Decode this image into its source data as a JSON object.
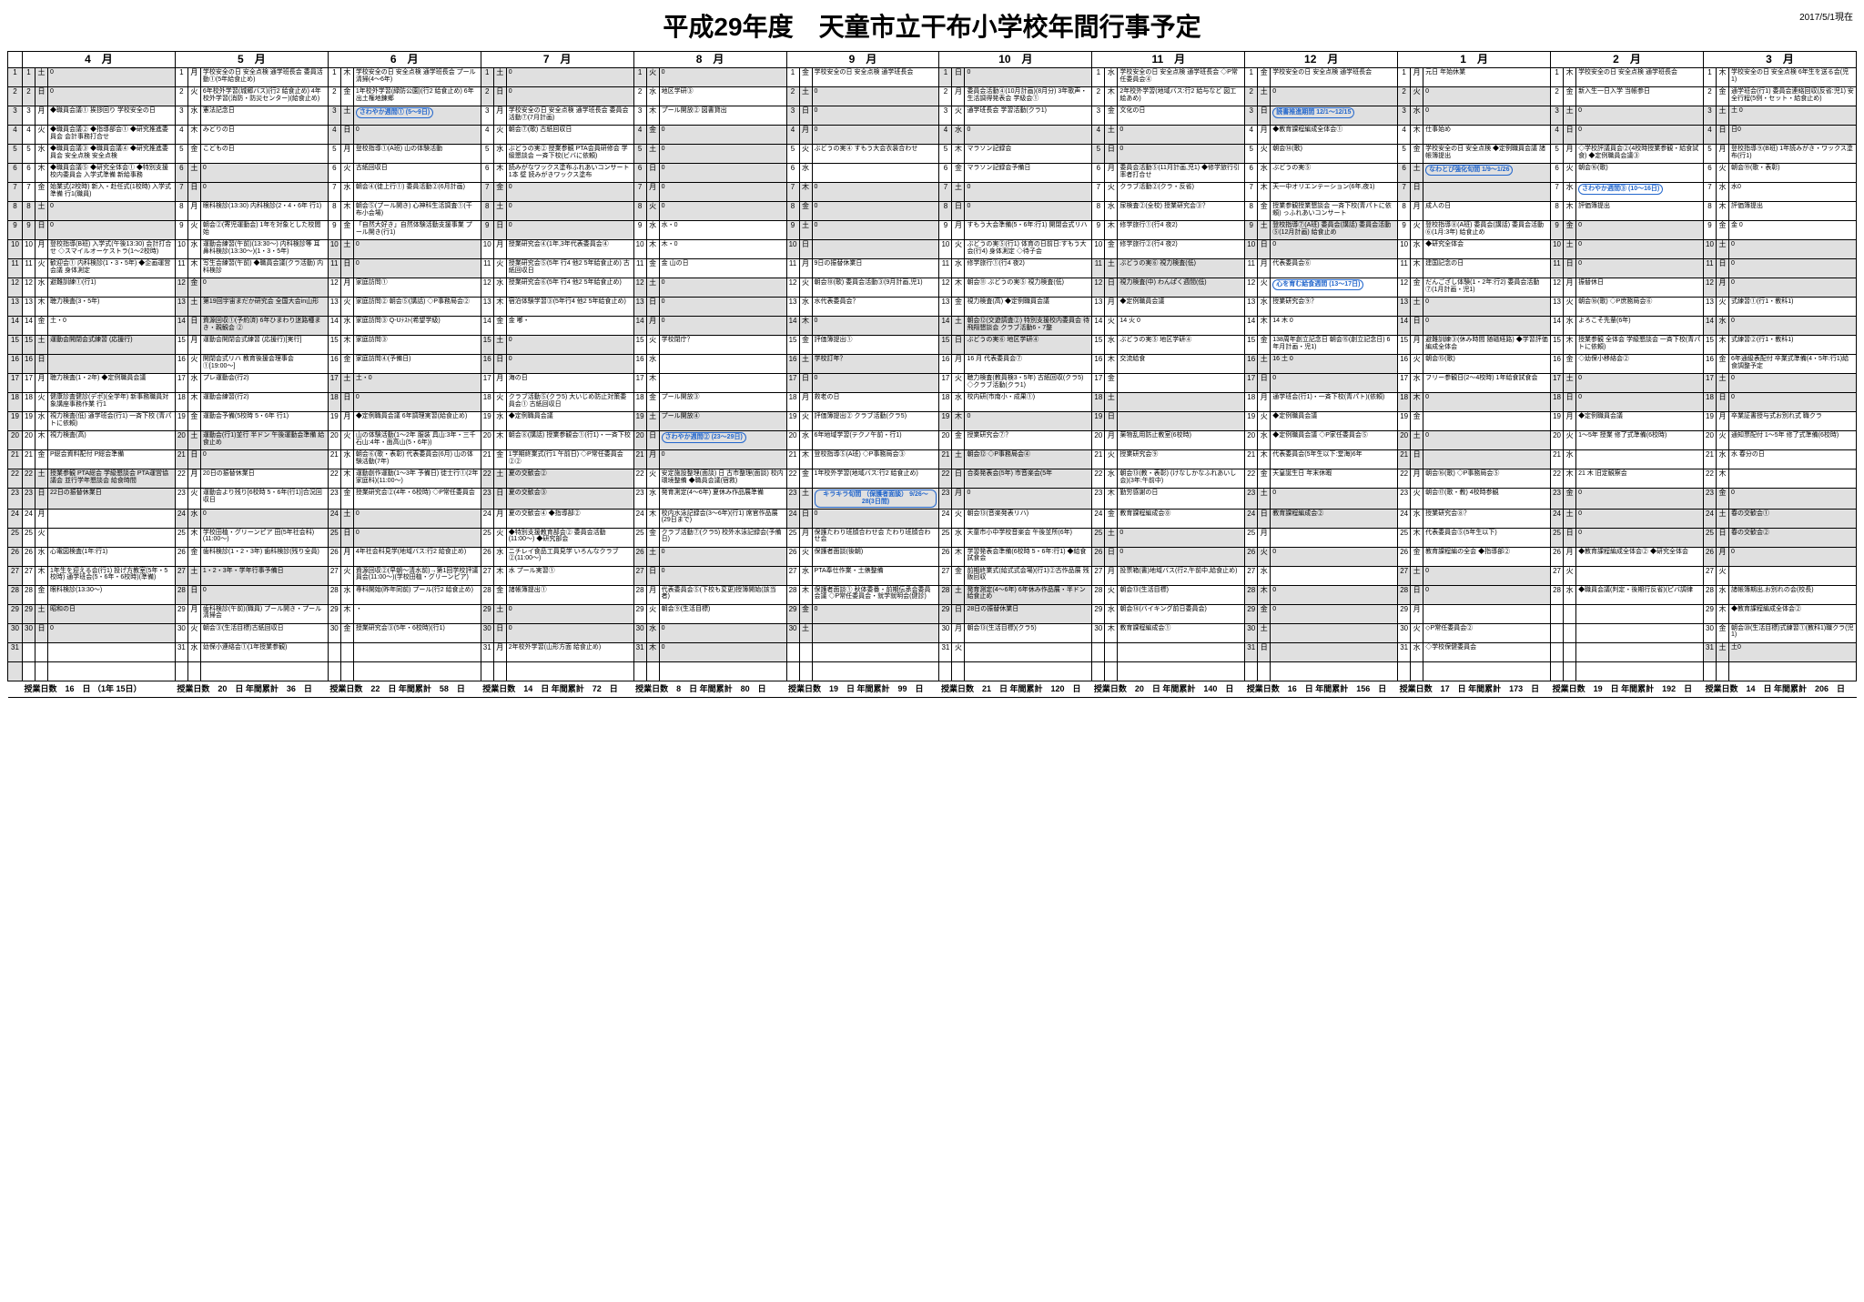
{
  "title": "平成29年度　天童市立干布小学校年間行事予定",
  "as_of": "2017/5/1現在",
  "months": [
    "4　月",
    "5　月",
    "6　月",
    "7　月",
    "8　月",
    "9　月",
    "10　月",
    "11　月",
    "12　月",
    "1　月",
    "2　月",
    "3　月"
  ],
  "row_numbers": [
    1,
    2,
    3,
    4,
    5,
    6,
    7,
    8,
    9,
    10,
    11,
    12,
    13,
    14,
    15,
    16,
    17,
    18,
    19,
    20,
    21,
    22,
    23,
    24,
    25,
    26,
    27,
    28,
    29,
    30,
    31,
    ""
  ],
  "footers": [
    "授業日数　16　日\n（1年 15日）",
    "授業日数　20　日\n年間累計　36　日",
    "授業日数　22　日\n年間累計　58　日",
    "授業日数　14　日\n年間累計　72　日",
    "授業日数　8　日\n年間累計　80　日",
    "授業日数　19　日\n年間累計　99　日",
    "授業日数　21　日\n年間累計　120　日",
    "授業日数　20　日\n年間累計　140　日",
    "授業日数　16　日\n年間累計　156　日",
    "授業日数　17　日\n年間累計　173　日",
    "授業日数　19　日\n年間累計　192　日",
    "授業日数　14　日\n年間累計　206　日"
  ],
  "callouts": {
    "sawayaka1": "さわやか週間①\n(5〜9日)",
    "dokusho": "読書推進期間\n12/1〜12/15",
    "nawatobi": "なわとび強化旬間\n1/9〜1/26",
    "sawayaka3": "さわやか週間③\n(10〜16日)",
    "kokoro": "心を育む給食週間\n(13〜17日)",
    "sawayaka2": "さわやか週間②\n(23〜29日)",
    "kirakira": "キラキラ旬間\n（保護者面談）\n9/26〜28(3日間)"
  },
  "grid": {
    "4": {
      "dow": [
        "土",
        "日",
        "月",
        "火",
        "水",
        "木",
        "金",
        "土",
        "日",
        "月",
        "火",
        "水",
        "木",
        "金",
        "土",
        "日",
        "月",
        "火",
        "水",
        "木",
        "金",
        "土",
        "日",
        "月",
        "火",
        "水",
        "木",
        "金",
        "土",
        "日",
        "",
        ""
      ],
      "ev": [
        "0",
        "0",
        "◆職員会議① 挨拶回り 学校安全の日",
        "◆職員会議② ◆指導部会① ◆研究推進委員会 会計事務打合せ",
        "◆職員会議③ ◆職員会議④ ◆研究推進委員会 安全点検 安全点検",
        "◆職員会議⑤ ◆研究全体会① ◆特別支援校内委員会 入学式準備 新給事務",
        "始業式(2校時) 新入・赴任式(1校時) 入学式準備 行1(職員)",
        "0",
        "0",
        "登校指導(B班) 入学式(午後13:30) 会計打合せ ◇スマイルオーケストラ(1〜2校時)",
        "歓迎会① 内科検診(1・3・5年) ◆企画運営会議 身体測定",
        "避難訓練①(行1)",
        "聴力検査(3・5年)",
        "土・0",
        "運動会開閉会式練習 (応援行)",
        "",
        "聴力検査(1・2年) ◆定例職員会議",
        "健康診査健診(デポ)(全学年) 新事務職員対象講座事務作業 行1",
        "視力検査(低) 通学班会(行1) 一斉下校 (青パトに依頼)",
        "視力検査(高)",
        "P総会資料配付 P総会準備",
        "授業参観 PTA総会 学級懇談会 PTA運営協議会 並行学年懇談会 給食時間",
        "22日の振替休業日",
        "",
        "",
        "心電図検査(1年:行1)",
        "1年生を迎える会(行1) 投げ方教室(5年・5校時) 通学班会(5・6年・6校時)(準備)",
        "眼科検診(13:30〜)",
        "昭和の日",
        "0",
        "",
        ""
      ]
    },
    "5": {
      "dow": [
        "月",
        "火",
        "水",
        "木",
        "金",
        "土",
        "日",
        "月",
        "火",
        "水",
        "木",
        "金",
        "土",
        "日",
        "月",
        "火",
        "水",
        "木",
        "金",
        "土",
        "日",
        "月",
        "火",
        "水",
        "木",
        "金",
        "土",
        "日",
        "月",
        "火",
        "水",
        ""
      ],
      "ev": [
        "学校安全の日 安全点検 通学班長会 委員活動①(5年給食止め)",
        "6年校外学習(城郷バス)(行2 給食止め) 4年校外学習(消防・防災センター)(給食止め)",
        "憲法記念日",
        "みどりの日",
        "こどもの日",
        "0",
        "0",
        "眼科検診(13:30) 内科検診(2・4・6年 行1)",
        "朝会②(寄児運動会) 1年を対象とした校閲始",
        "運動会練習(午前)(13:30〜) 内科検診等 耳鼻科検診(13:30〜)(1・3・5年)",
        "写生会練習(午前) ◆職員会議(クラ活動) 内科検診",
        "0",
        "第19回宇宙まだか研究会 全国大会in山形",
        "資源回収①(予約済) 6年ひまわり迷路種まき・親観会 ②",
        "運動会開閉会式練習 (応援行)[実行]",
        "開閉会式リハ 教育後援会理事会①[19:00〜]",
        "プレ運動会(行2)",
        "運動会練習(行2)",
        "運動会予備(5校時 5・6年 行1)",
        "運動会(行1)並行 半ドン 午後運動会準備 給食止め",
        "0",
        "20日の振替休業日",
        "運動会より残り[6校時 5・6年(行1)]合況回収日",
        "0",
        "学校田植・グリーンピア 田(5年社会科)(11:00〜)",
        "歯科検診(1・2・3年) 歯科検診(残り全員)",
        "1・2・3年・学年行事予備日",
        "0",
        "歯科検診(午前)(職員) プール開き・プール清掃会",
        "朝会③(生活目標)古紙回収日",
        "幼保小連絡会①(1年授業参観)",
        ""
      ]
    },
    "6": {
      "dow": [
        "木",
        "金",
        "土",
        "日",
        "月",
        "火",
        "水",
        "木",
        "金",
        "土",
        "日",
        "月",
        "火",
        "水",
        "木",
        "金",
        "土",
        "日",
        "月",
        "火",
        "水",
        "木",
        "金",
        "土",
        "日",
        "月",
        "火",
        "水",
        "木",
        "金",
        "",
        ""
      ],
      "ev": [
        "学校安全の日 安全点検 通学班長会 プール清掃(4〜6年)",
        "1年校外学習(緑防公園)(行2 給食止め) 6年出土権地錬郷",
        "土・0",
        "0",
        "登校指導①(A班) 山の体験活動",
        "古紙回収日",
        "朝会④(徒上行①) 委員活動②(6月計画)",
        "朝会⑤(プール開き) 心神科生活調査①(干布小会場)",
        "「自然大好き」自然体験活動支援事業 プール開き(行1)",
        "0",
        "0",
        "家庭訪問①",
        "家庭訪問② 朝会⑤(講話) ◇P事務局会②",
        "家庭訪問③ Q-Uﾃｽﾄ(希望学級)",
        "家庭訪問③",
        "家庭訪問④(予備日)",
        "土・0",
        "0",
        "◆定例職員会議 6年調理実習(給食止め)",
        "山の体験活動(1〜2年 服装 具山:3年・三千石山:4年・面高山(5・6年))",
        "朝会⑥(歌・表彰) 代表委員会(6月) 山の体験活動(7年)",
        "運動創作運動(1〜3年 予備日) 徒士行①(2年家庭科)(11:00〜)",
        "授業研究会②(4年・6校時) ◇P常任委員会",
        "0",
        "0",
        "4年社会科見学(地域バス:行2 給食止め)",
        "資源回収②(早朝〜清水前)→第1回学校評議員会(11:00〜)(学校田植・グリーンピア)",
        "専科開始(昨年同前) プール(行2 給食止め)",
        "・",
        "授業研究会③(5年・6校時)(行1)",
        "",
        ""
      ]
    },
    "7": {
      "dow": [
        "土",
        "日",
        "月",
        "火",
        "水",
        "木",
        "金",
        "土",
        "日",
        "月",
        "火",
        "水",
        "木",
        "金",
        "土",
        "日",
        "月",
        "火",
        "水",
        "木",
        "金",
        "土",
        "日",
        "月",
        "火",
        "水",
        "木",
        "金",
        "土",
        "日",
        "月",
        ""
      ],
      "ev": [
        "0",
        "0",
        "学校安全の日 安全点検 通学班長会  委員会活動⑦(7月計画)",
        "朝会⑦(歌) 古紙回収日",
        "ぶどうの実② 授業参観 PTA会員研修会 学級懇談会 一斉下校(ビバに依頼)",
        "読みがなワックス塗布ふれあいコンサート1本 壁 読みがきワックス塗布",
        "0",
        "0",
        "0",
        "授業研究会④(1年,3年代表委員会④",
        "授業研究会⑤(5年 行4 他2 5年給食止め) 古紙回収日",
        "授業研究会⑥(5年 行4 他2 5年給食止め)",
        "宿泊体験学習③(5年行4 他2 5年給食止め)",
        "金 嘟・",
        "0",
        "0",
        "海の日",
        "クラブ活動⑤(クラ5) 大いじめ防止対策委員会① 古紙回収日",
        "◆定例職員会議",
        "朝会⑧(講話) 授業参観会①(行1)・一斉下校",
        "1学期終業式(行1 午前日) ◇P常任委員会②②",
        "夏の交歓会②",
        "夏の交歓会③",
        "夏の交歓会④ ◆指導部②",
        "◆特別支援教育部会② 委員会活動(11:00〜) ◆研究部会",
        "ニチレイ食品工員見学 いろんなクラブ②(11:00〜)",
        "水 プール実習①",
        "諸帳簿提出①",
        "0",
        "0",
        "2年校外学習(山形方面 給食止め)",
        ""
      ]
    },
    "8": {
      "dow": [
        "火",
        "水",
        "木",
        "金",
        "土",
        "日",
        "月",
        "火",
        "水",
        "木",
        "金",
        "土",
        "日",
        "月",
        "火",
        "水",
        "木",
        "金",
        "土",
        "日",
        "月",
        "火",
        "水",
        "木",
        "金",
        "土",
        "日",
        "月",
        "火",
        "水",
        "木",
        ""
      ],
      "ev": [
        "0",
        "地区学研③",
        "プール開放② 図書貸出",
        "0",
        "0",
        "0",
        "0",
        "0",
        "水・0",
        "木・0",
        "金 山の日",
        "0",
        "0",
        "0",
        "学校閉庁？",
        "",
        "",
        "プール開放③",
        "プール開放④",
        "0",
        "0",
        "安定施設整理(面談) 日 古市整理(面談) 校内環境整備 ◆職員会議(宿救)",
        "発育測定(4〜6年) 夏休み作品展準備",
        "校内水泳記録会(3〜6年)(行1) 席官作品展(29日まで)",
        "クラブ活動⑦(クラ5) 校外水泳記録会(予備日)",
        "0",
        "0",
        "代表委員会⑤(下校も変更)授簿開始(該当者)",
        "朝会⑨(生活目標)",
        "0",
        "0",
        ""
      ]
    },
    "9": {
      "dow": [
        "金",
        "土",
        "日",
        "月",
        "火",
        "水",
        "木",
        "金",
        "土",
        "日",
        "月",
        "火",
        "水",
        "木",
        "金",
        "土",
        "日",
        "月",
        "火",
        "水",
        "木",
        "金",
        "土",
        "日",
        "月",
        "火",
        "水",
        "木",
        "金",
        "土",
        "",
        ""
      ],
      "ev": [
        "学校安全の日 安全点検 通学班長会",
        "0",
        "0",
        "0",
        "ぶどうの実④ すもう大会衣装合わせ",
        "",
        "0",
        "0",
        "0",
        "",
        "9日の振替休業日",
        "朝会⑩(歌) 委員会活動③(9月計画,児1)",
        "水代表委員会？",
        "0",
        "評価簿提出①",
        "学校訂年？",
        "0",
        "救老の日",
        "評価簿提出② クラブ活動(クラ5)",
        "6年地域学習(テクノ午前・行1)",
        "登校指導⑤(A班) ◇P事務局会③",
        "1年校外学習(地域バス:行2 給食止め)",
        "発育測定(4〜6年) 6年休み作品展",
        "0",
        "保護たわり班顔合わせ会 たわり班顔合わせ会",
        "保護者面談(後朝)",
        "PTA奉仕作業・土俵整備",
        "保護者面談① 秋体委番・前期伝承会委員会議 ◇P常任委員会・就学就明会(健診)",
        "0",
        "",
        ""
      ]
    },
    "10": {
      "dow": [
        "日",
        "月",
        "火",
        "水",
        "木",
        "金",
        "土",
        "日",
        "月",
        "火",
        "水",
        "木",
        "金",
        "土",
        "日",
        "月",
        "火",
        "水",
        "木",
        "金",
        "土",
        "日",
        "月",
        "火",
        "水",
        "木",
        "金",
        "土",
        "日",
        "月",
        "火",
        ""
      ],
      "ev": [
        "0",
        "委員会活動④(10月計画)(8月分) 3年歌声・生活調得発表会 学級会①",
        "通学班長会 学習活動(クラ1)",
        "0",
        "マラソン記録会",
        "マラソン記録会予備日",
        "0",
        "0",
        "すもう大会準備(5・6年:行1) 開閉会式リハ",
        "ぶどうの実⑤(行1) 体育の日前日:すもう大会(行4) 身体測定 ◇待子会",
        "修学旅行①(行4 夜2)",
        "朝会⑪ ぶどうの実⑤ 視力検査(低)",
        "視力検査(高) ◆定例職員会議",
        "朝会⑫(交遊調査②) 特別支援校内委員会 待飛翔懇談会 クラブ活動6・7整",
        "ぶどうの実⑥ 地区学研④",
        "16  月 代表委員会⑦",
        "聴力検査(教員検3・5年) 古紙回収(クラ5) ◇クラブ活動(クラ1)",
        "校内研(市南小・成果①)",
        "0",
        "授業研究会⑦？",
        "朝会⑫ ◇P事務局会④",
        "合奏発表会(5年) 市音楽会(5年",
        "0",
        "朝会⑬(音楽発表リハ)",
        "天童市小中学校音楽会 午後並所(6年)",
        "学習発表会準備(6校時 5・6年:行1) ◆給食試食会",
        "前期終業式(給式式会場)(行1)②古作品展 残飯回収",
        "発育測定(4〜6年) 6年休み作品展・半ドン 給食止め",
        "28日の振替休業日",
        "朝会⑬(生活目標)(クラ5)",
        ""
      ]
    },
    "11": {
      "dow": [
        "水",
        "木",
        "金",
        "土",
        "日",
        "月",
        "火",
        "水",
        "木",
        "金",
        "土",
        "日",
        "月",
        "火",
        "水",
        "木",
        "金",
        "土",
        "日",
        "月",
        "火",
        "水",
        "木",
        "金",
        "土",
        "日",
        "月",
        "火",
        "水",
        "木",
        "",
        ""
      ],
      "ev": [
        "学校安全の日 安全点検 通学班長会 ◇P常任委員会④",
        "2年校外学習(地域バス:行2 給与など 図工 絵あめ)",
        "文化の日",
        "0",
        "0",
        "委員会活動⑤(11月計画,児1) ◆修学旅行引率者打合せ",
        "クラブ活動②(クラ・反省)",
        "尿検査②(全校) 授業研究会③？",
        "修学旅行①(行4 夜2)",
        "修学旅行②(行4 夜2)",
        "ぶどうの実⑥ 視力検査(低)",
        "視力検査(中) わんぱく週間(低)",
        "◆定例職員会議",
        "14  火 0",
        "ぶどうの実⑤ 地区学研④",
        "交流給食",
        "",
        "",
        "",
        "薬物乱用防止教室(6校時)",
        "授業研究会⑨",
        "朝会⑬(教・表彰) (けなしかなふれあいし会)(3年:午前中)",
        "勤労感謝の日",
        "教育課程編成会⓪",
        "0",
        "0",
        "投票箱(書)地域バス(行2,午前中,給食止め)",
        "朝会⑬(生活目標)",
        "朝会⑭(バイキング前日委員会)",
        "教育課程編成会①",
        "",
        ""
      ]
    },
    "12": {
      "dow": [
        "金",
        "土",
        "日",
        "月",
        "火",
        "水",
        "木",
        "金",
        "土",
        "日",
        "月",
        "火",
        "水",
        "木",
        "金",
        "土",
        "日",
        "月",
        "火",
        "水",
        "木",
        "金",
        "土",
        "日",
        "月",
        "火",
        "水",
        "木",
        "金",
        "土",
        "日",
        ""
      ],
      "ev": [
        "学校安全の日 安全点検 通学班長会",
        "0",
        "",
        "◆教育課程編成全体会①",
        "朝会⑭(歌)",
        "ぶどうの実⑤",
        "天一中オリエンテーション(6年,夜1)",
        "授業参観授業懇談会 一斉下校(青パトに依頼) っふれあいコンサート",
        "登校指導⑦(A班) 委員会(講話) 委員会活動⑤(12月計画) 給食止め",
        "0",
        "代表委員会⑥",
        "5年調理実習(給食止め)",
        "授業研究会⑨？",
        "14  木 0",
        "138周年創立記念日 朝会⑮(創立記念日) 6年月計画・児1)",
        "16  土 0",
        "0",
        "通学班会(行1)・一斉下校(青パト)(依頼)",
        "◆定例職員会議",
        "◆定例職員会議 ◇P家任委員会⑤",
        "代表委員会(5年生以下:堂海)6年",
        "天皇誕生日 年末休暇",
        "0",
        "教育課程編成会②",
        "",
        "0",
        "",
        "0",
        "0",
        "",
        ""
      ]
    },
    "1": {
      "dow": [
        "月",
        "火",
        "水",
        "木",
        "金",
        "土",
        "日",
        "月",
        "火",
        "水",
        "木",
        "金",
        "土",
        "日",
        "月",
        "火",
        "水",
        "木",
        "金",
        "土",
        "日",
        "月",
        "火",
        "水",
        "木",
        "金",
        "土",
        "日",
        "月",
        "火",
        "水",
        ""
      ],
      "ev": [
        "元日 年始休業",
        "0",
        "0",
        "仕事始め",
        "学校安全の日 安全点検 ◆定例職員会議 諸帳簿提出",
        "0",
        "",
        "成人の日",
        "登校指導⑧(A班) 委員会(講話) 委員会活動⑥(1月:3年) 給食止め",
        "◆研究全体会",
        "建国記念の日",
        "だんござし体験(1・2年:行2) 委員会活動⑦(1月計画・児1)",
        "0",
        "0",
        "避難訓練③(休み時間 随磁経路) ◆学習評価編成全体会",
        "朝会⑮(歌)",
        "フリー参観日(2〜4校時) 1年給食試食会",
        "0",
        "",
        "0",
        "",
        "朝会⑯(歌) ◇P事務局会⑤",
        "朝会⑰(歌・教) 4校時参観",
        "授業研究会⑧？",
        "代表委員会⑤(5年生以下)",
        "教育課程編の全会 ◆指導部②",
        "0",
        "0",
        "",
        "◇P常任委員会②",
        "◇学校保健委員会",
        ""
      ]
    },
    "2": {
      "dow": [
        "木",
        "金",
        "土",
        "日",
        "月",
        "火",
        "水",
        "木",
        "金",
        "土",
        "日",
        "月",
        "火",
        "水",
        "木",
        "金",
        "土",
        "日",
        "月",
        "火",
        "水",
        "木",
        "金",
        "土",
        "日",
        "月",
        "火",
        "水",
        "",
        "",
        "",
        ""
      ],
      "ev": [
        "学校安全の日 安全点検 通学班長会",
        "新入生一日入学 当帳参日",
        "0",
        "0",
        "◇学校評議員会②(4校時授業参観・給食試食) ◆定例職員会議③",
        "朝会⑯(歌)",
        "ぶどうの実⑥ ◇校生委員・児童委員懇談会(5校時授業参観)",
        "評価簿提出",
        "0",
        "0",
        "0",
        "振替休日",
        "朝会⑱(歌) ◇P庶務局会⑥",
        "よろこそ先輩(6年)",
        "授業参観 全体会 学級懇談会  一斉下校(青パトに依頼)",
        "◇幼保小移絡会②",
        "0",
        "0",
        "◆定例職員会議",
        "1〜5年 授業 修了式準備(6校時)",
        "",
        "21 木 旧定観察会",
        "0",
        "0",
        "0",
        "◆教育課程編成全体会② ◆研究全体会",
        "",
        "◆職員会議(判定・後期行反省)(ピバ調律",
        "",
        "",
        "",
        ""
      ]
    },
    "3": {
      "dow": [
        "木",
        "金",
        "土",
        "日",
        "月",
        "火",
        "水",
        "木",
        "金",
        "土",
        "日",
        "月",
        "火",
        "水",
        "木",
        "金",
        "土",
        "日",
        "月",
        "火",
        "水",
        "木",
        "金",
        "土",
        "日",
        "月",
        "火",
        "水",
        "木",
        "金",
        "土",
        ""
      ],
      "ev": [
        "学校安全の日 安全点検 6年生を送る会(児1)",
        "通学班会(行1) 委員会連絡回収(反省:児1) 安全行程(5例・セット・給食止め)",
        "土  0",
        "日0",
        "登校指導⑨(B班) 1年読みがき・ワックス塗布(行1)",
        "朝会⑲(歌・表彰)",
        "水0",
        "評価簿提出",
        "金 0",
        "0",
        "0",
        "0",
        "式練習①(行1・教科1)",
        "0",
        "式練習②(行1・教科1)",
        "6年通級表配付 卒業式準備(4・5年:行1)給食調整予定",
        "0",
        "0",
        "卒業証書授与式お別れ式 職クラ",
        "通知票配付 1〜5年 修了式準備(6校時)",
        "水 春分の日",
        "",
        "0",
        "春の交歓会①",
        "春の交歓会②",
        "0",
        "",
        "諸帳簿期出,お別れの会(校長)",
        "◆教育課程編成全体会②",
        "朝会⑳(生活目標)式練習①(教科1)職クラ(児1)",
        "土0",
        ""
      ]
    }
  },
  "styling": {
    "font_body": "8px",
    "font_title": "28px",
    "header_bg": "#ffffff",
    "shade_bg": "#e0e0e0",
    "border_color": "#000000",
    "callout_border": "#2266cc",
    "callout_text": "#2266cc",
    "col_widths": {
      "rownum": 14,
      "daynum": 14,
      "dow": 14
    }
  }
}
